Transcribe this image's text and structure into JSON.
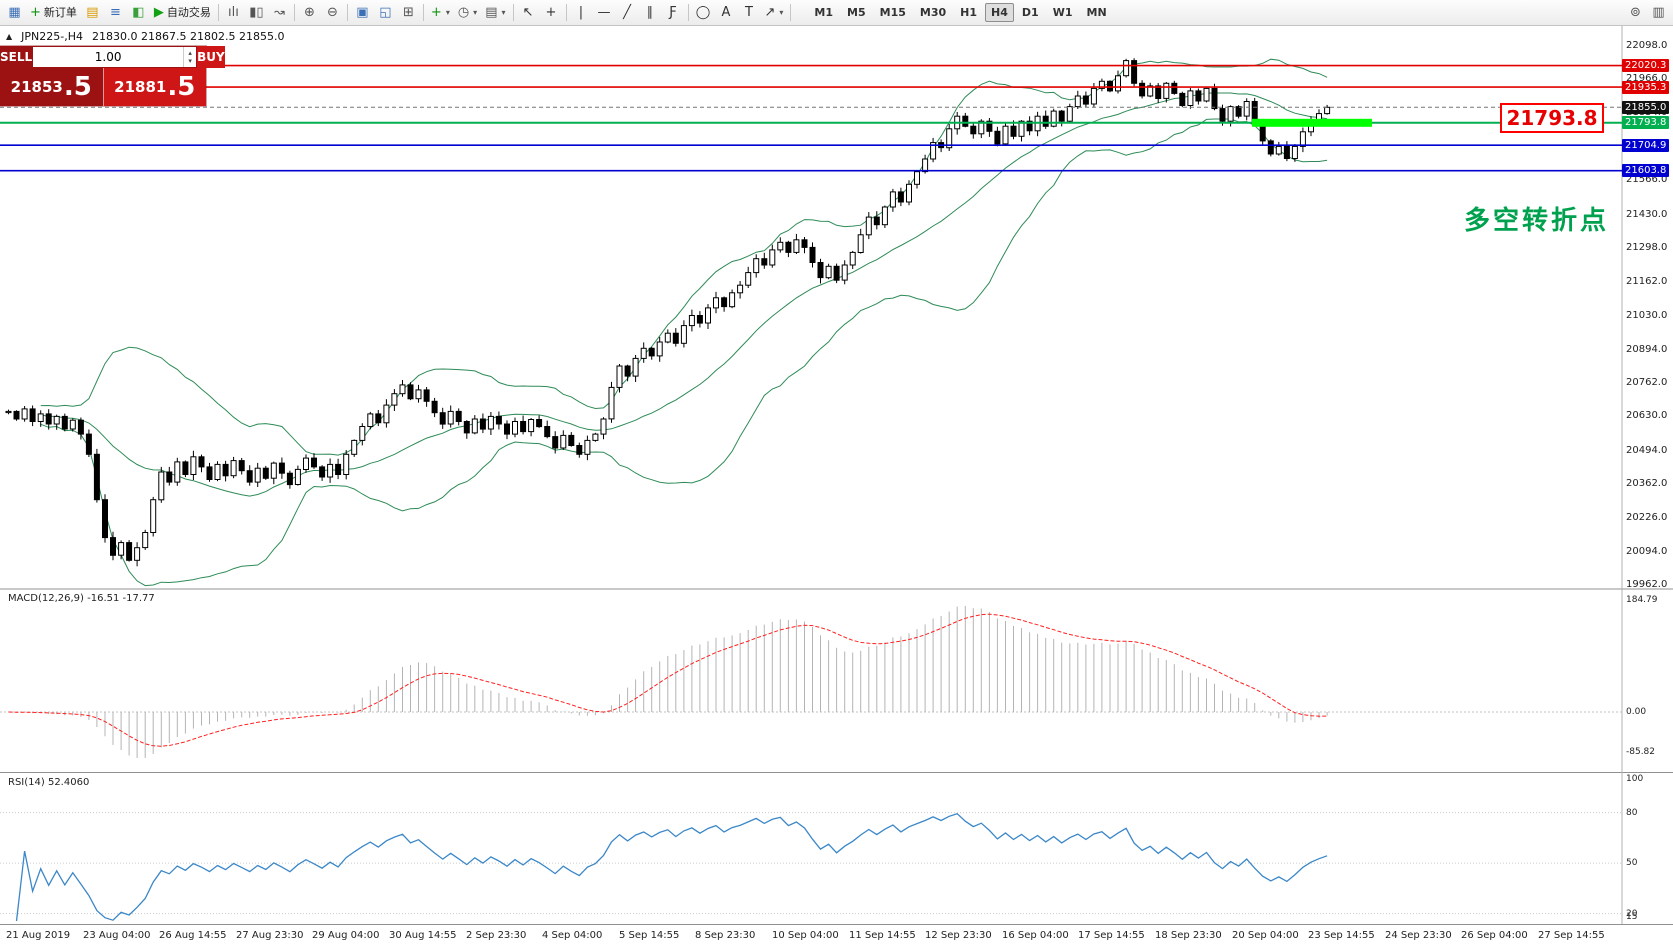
{
  "window": {
    "title": "JPN225-,H4",
    "ohlc": "21830.0 21867.5 21802.5 21855.0"
  },
  "toolbar": {
    "left_items": [
      {
        "name": "terminal-icon",
        "glyph": "▦",
        "color": "#3b6fb5"
      },
      {
        "name": "new-order-button",
        "glyph": "+",
        "color": "#0c930c",
        "label": "新订单"
      },
      {
        "name": "profiles-icon",
        "glyph": "▤",
        "color": "#d99b00"
      },
      {
        "name": "market-watch-icon",
        "glyph": "≡",
        "color": "#3b6fb5"
      },
      {
        "name": "data-window-icon",
        "glyph": "◧",
        "color": "#3aa13a"
      },
      {
        "name": "autotrading-button",
        "glyph": "▶",
        "color": "#12a112",
        "label": "自动交易"
      },
      {
        "sep": true
      },
      {
        "name": "bar-chart-icon",
        "glyph": "ılı",
        "color": "#555"
      },
      {
        "name": "candlestick-chart-icon",
        "glyph": "▮▯",
        "color": "#555"
      },
      {
        "name": "line-chart-icon",
        "glyph": "↝",
        "color": "#555"
      },
      {
        "sep": true
      },
      {
        "name": "zoom-in-icon",
        "glyph": "⊕",
        "color": "#555"
      },
      {
        "name": "zoom-out-icon",
        "glyph": "⊖",
        "color": "#555"
      },
      {
        "sep": true
      },
      {
        "name": "tile-windows-icon",
        "glyph": "▣",
        "color": "#3b6fb5"
      },
      {
        "name": "cascade-windows-icon",
        "glyph": "◱",
        "color": "#3b6fb5"
      },
      {
        "name": "grid-icon",
        "glyph": "⊞",
        "color": "#555"
      },
      {
        "sep": true
      },
      {
        "name": "indicators-icon",
        "glyph": "+",
        "color": "#0c930c",
        "caret": true
      },
      {
        "name": "periods-icon",
        "glyph": "◷",
        "color": "#555",
        "caret": true
      },
      {
        "name": "templates-icon",
        "glyph": "▤",
        "color": "#555",
        "caret": true
      },
      {
        "sep": true
      },
      {
        "name": "cursor-icon",
        "glyph": "↖",
        "color": "#333"
      },
      {
        "name": "crosshair-icon",
        "glyph": "+",
        "color": "#333"
      },
      {
        "sep": true
      },
      {
        "name": "vertical-line-icon",
        "glyph": "|",
        "color": "#333"
      },
      {
        "name": "horizontal-line-icon",
        "glyph": "—",
        "color": "#333"
      },
      {
        "name": "trendline-icon",
        "glyph": "╱",
        "color": "#333"
      },
      {
        "name": "channel-icon",
        "glyph": "∥",
        "color": "#333"
      },
      {
        "name": "fibonacci-icon",
        "glyph": "Ƒ",
        "color": "#333"
      },
      {
        "sep": true
      },
      {
        "name": "shapes-icon",
        "glyph": "◯",
        "color": "#333"
      },
      {
        "name": "text-icon",
        "glyph": "A",
        "color": "#333"
      },
      {
        "name": "label-icon",
        "glyph": "T",
        "color": "#333"
      },
      {
        "name": "arrow-tools-icon",
        "glyph": "↗",
        "color": "#333",
        "caret": true
      },
      {
        "sep": true
      }
    ],
    "timeframes": [
      "M1",
      "M5",
      "M15",
      "M30",
      "H1",
      "H4",
      "D1",
      "W1",
      "MN"
    ],
    "active_timeframe": "H4",
    "right_items": [
      {
        "name": "symbol-search-icon",
        "glyph": "⊚",
        "color": "#555"
      },
      {
        "name": "chart-layout-icon",
        "glyph": "▥",
        "color": "#555"
      }
    ]
  },
  "trade_panel": {
    "sell_label": "SELL",
    "buy_label": "BUY",
    "volume": "1.00",
    "sell_price": "21853",
    "sell_frac": ".5",
    "buy_price": "21881",
    "buy_frac": ".5"
  },
  "price_scale": [
    "22098.0",
    "21966.0",
    "21834.0",
    "21702.0",
    "21566.0",
    "21430.0",
    "21298.0",
    "21162.0",
    "21030.0",
    "20894.0",
    "20762.0",
    "20630.0",
    "20494.0",
    "20362.0",
    "20226.0",
    "20094.0",
    "19962.0"
  ],
  "levels": [
    {
      "price": 22020.3,
      "label": "22020.3",
      "type": "resistance",
      "color": "#e00000"
    },
    {
      "price": 21935.3,
      "label": "21935.3",
      "type": "resistance",
      "color": "#e00000"
    },
    {
      "price": 21855.0,
      "label": "21855.0",
      "type": "current",
      "color": "#111111"
    },
    {
      "price": 21793.8,
      "label": "21793.8",
      "type": "pivot",
      "color": "#00b050"
    },
    {
      "price": 21704.9,
      "label": "21704.9",
      "type": "support",
      "color": "#0000d0"
    },
    {
      "price": 21603.8,
      "label": "21603.8",
      "type": "support",
      "color": "#0000d0"
    }
  ],
  "annotations": {
    "price_box": "21793.8",
    "note": "多空转折点",
    "highlight_color": "#00ff00"
  },
  "macd": {
    "label": "MACD(12,26,9) -16.51 -17.77",
    "scale_top": "184.79",
    "scale_zero": "0.00",
    "scale_bottom": "-85.82"
  },
  "rsi": {
    "label": "RSI(14) 52.4060",
    "scale": [
      "100",
      "80",
      "50",
      "20",
      "15"
    ]
  },
  "time_axis": [
    "21 Aug 2019",
    "23 Aug 04:00",
    "26 Aug 14:55",
    "27 Aug 23:30",
    "29 Aug 04:00",
    "30 Aug 14:55",
    "2 Sep 23:30",
    "4 Sep 04:00",
    "5 Sep 14:55",
    "8 Sep 23:30",
    "10 Sep 04:00",
    "11 Sep 14:55",
    "12 Sep 23:30",
    "16 Sep 04:00",
    "17 Sep 14:55",
    "18 Sep 23:30",
    "20 Sep 04:00",
    "23 Sep 14:55",
    "24 Sep 23:30",
    "26 Sep 04:00",
    "27 Sep 14:55"
  ],
  "chart_data": {
    "type": "candlestick",
    "symbol": "JPN225-",
    "period": "H4",
    "visible_range": [
      "21 Aug 2019",
      "27 Sep 2019"
    ],
    "price_axis": {
      "min": 19962.0,
      "max": 22098.0
    },
    "indicators": [
      "Bollinger Bands",
      "MACD(12,26,9)",
      "RSI(14)"
    ],
    "closes": [
      20650,
      20620,
      20660,
      20610,
      20640,
      20600,
      20630,
      20580,
      20615,
      20560,
      20480,
      20300,
      20150,
      20080,
      20130,
      20060,
      20110,
      20170,
      20300,
      20410,
      20370,
      20450,
      20400,
      20470,
      20430,
      20380,
      20440,
      20395,
      20455,
      20415,
      20370,
      20425,
      20385,
      20445,
      20405,
      20360,
      20420,
      20465,
      20430,
      20390,
      20440,
      20400,
      20480,
      20535,
      20590,
      20640,
      20605,
      20675,
      20720,
      20755,
      20700,
      20735,
      20690,
      20645,
      20600,
      20650,
      20610,
      20565,
      20620,
      20580,
      20630,
      20600,
      20560,
      20610,
      20570,
      20618,
      20590,
      20550,
      20505,
      20555,
      20515,
      20480,
      20535,
      20560,
      20620,
      20745,
      20830,
      20790,
      20860,
      20900,
      20870,
      20925,
      20960,
      20920,
      20990,
      21030,
      21000,
      21060,
      21100,
      21065,
      21120,
      21150,
      21200,
      21255,
      21230,
      21290,
      21320,
      21280,
      21330,
      21300,
      21240,
      21180,
      21225,
      21170,
      21230,
      21280,
      21350,
      21420,
      21390,
      21460,
      21520,
      21480,
      21550,
      21600,
      21650,
      21715,
      21695,
      21770,
      21820,
      21780,
      21750,
      21800,
      21760,
      21710,
      21780,
      21740,
      21800,
      21762,
      21820,
      21780,
      21840,
      21800,
      21858,
      21900,
      21868,
      21930,
      21958,
      21920,
      21980,
      22040,
      21950,
      21900,
      21940,
      21890,
      21950,
      21910,
      21862,
      21920,
      21880,
      21930,
      21850,
      21800,
      21858,
      21820,
      21878,
      21800,
      21722,
      21670,
      21700,
      21652,
      21700,
      21758,
      21800,
      21830,
      21855
    ]
  }
}
